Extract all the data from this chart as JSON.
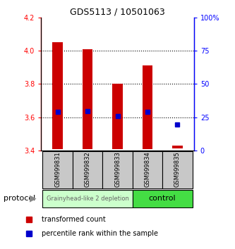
{
  "title": "GDS5113 / 10501063",
  "samples": [
    "GSM999831",
    "GSM999832",
    "GSM999833",
    "GSM999834",
    "GSM999835"
  ],
  "bar_bottoms": [
    3.41,
    3.41,
    3.41,
    3.41,
    3.415
  ],
  "bar_tops": [
    4.05,
    4.01,
    3.8,
    3.91,
    3.43
  ],
  "percentile_values": [
    3.635,
    3.638,
    3.607,
    3.635,
    3.555
  ],
  "ylim": [
    3.4,
    4.2
  ],
  "yticks": [
    3.4,
    3.6,
    3.8,
    4.0,
    4.2
  ],
  "y2ticks": [
    0,
    25,
    50,
    75,
    100
  ],
  "y2labels": [
    "0",
    "25",
    "50",
    "75",
    "100%"
  ],
  "grid_lines": [
    3.6,
    3.8,
    4.0
  ],
  "bar_color": "#cc0000",
  "dot_color": "#0000cc",
  "group1_indices": [
    0,
    1,
    2
  ],
  "group2_indices": [
    3,
    4
  ],
  "group1_label": "Grainyhead-like 2 depletion",
  "group2_label": "control",
  "group1_bg": "#ccffcc",
  "group2_bg": "#44dd44",
  "sample_bg": "#c8c8c8",
  "legend_red": "transformed count",
  "legend_blue": "percentile rank within the sample",
  "protocol_label": "protocol",
  "bar_width": 0.35,
  "title_fontsize": 9,
  "tick_fontsize": 7,
  "sample_fontsize": 6,
  "legend_fontsize": 7
}
